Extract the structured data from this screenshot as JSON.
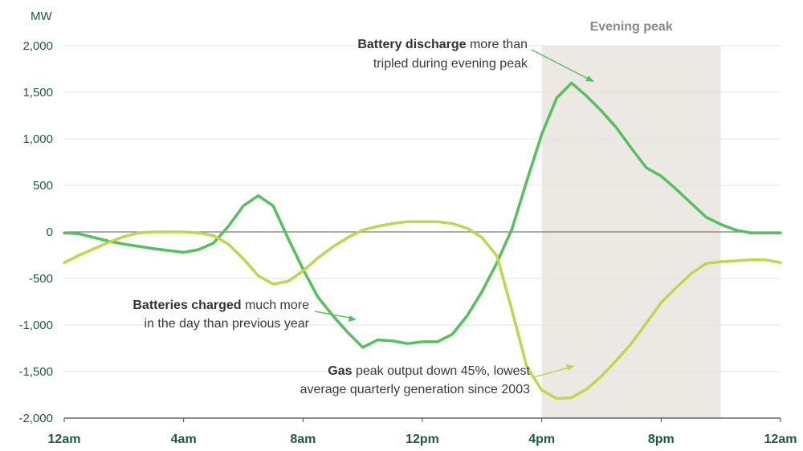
{
  "chart_data": {
    "type": "line",
    "ylabel": "MW",
    "ylim": [
      -2000,
      2000
    ],
    "yticks": [
      2000,
      1500,
      1000,
      500,
      0,
      -500,
      -1000,
      -1500,
      -2000
    ],
    "ytick_labels": [
      "2,000",
      "1,500",
      "1,000",
      "500",
      "0",
      "-500",
      "-1,000",
      "-1,500",
      "-2,000"
    ],
    "xlim": [
      0,
      24
    ],
    "xticks": [
      0,
      4,
      8,
      12,
      16,
      20,
      24
    ],
    "xtick_labels": [
      "12am",
      "4am",
      "8am",
      "12pm",
      "4pm",
      "8pm",
      "12am"
    ],
    "grid": "horizontal",
    "shaded_region": {
      "x": [
        16,
        22
      ],
      "label": "Evening peak",
      "color": "#ece9e4"
    },
    "series": [
      {
        "key": "battery",
        "color": "#55c15c",
        "x": [
          0,
          0.5,
          1,
          1.5,
          2,
          3,
          4,
          4.5,
          5,
          5.5,
          6,
          6.5,
          7,
          7.5,
          8,
          8.5,
          9,
          9.5,
          10,
          10.5,
          11,
          11.5,
          12,
          12.5,
          13,
          13.5,
          14,
          14.5,
          15,
          15.5,
          16,
          16.5,
          17,
          17.5,
          18,
          18.5,
          19,
          19.5,
          20,
          20.5,
          21,
          21.5,
          22,
          22.5,
          23,
          23.5,
          24
        ],
        "values": [
          -10,
          -20,
          -60,
          -100,
          -130,
          -180,
          -220,
          -190,
          -120,
          60,
          280,
          390,
          280,
          -70,
          -400,
          -700,
          -900,
          -1080,
          -1240,
          -1160,
          -1170,
          -1200,
          -1180,
          -1180,
          -1100,
          -900,
          -640,
          -330,
          30,
          550,
          1050,
          1440,
          1600,
          1460,
          1300,
          1120,
          900,
          690,
          600,
          460,
          310,
          160,
          80,
          20,
          -10,
          -10,
          -10
        ]
      },
      {
        "key": "gas",
        "color": "#bcd94e",
        "x": [
          0,
          0.5,
          1,
          1.5,
          2,
          2.5,
          3,
          3.5,
          4,
          4.5,
          5,
          5.5,
          6,
          6.5,
          7,
          7.5,
          8,
          8.5,
          9,
          9.5,
          10,
          10.5,
          11,
          11.5,
          12,
          12.5,
          13,
          13.5,
          14,
          14.5,
          15,
          15.5,
          16,
          16.5,
          17,
          17.5,
          18,
          18.5,
          19,
          19.5,
          20,
          20.5,
          21,
          21.5,
          22,
          22.5,
          23,
          23.5,
          24
        ],
        "values": [
          -330,
          -250,
          -180,
          -110,
          -50,
          -10,
          0,
          0,
          0,
          -10,
          -40,
          -130,
          -290,
          -470,
          -560,
          -530,
          -420,
          -280,
          -160,
          -60,
          20,
          60,
          90,
          110,
          110,
          110,
          90,
          40,
          -60,
          -260,
          -840,
          -1450,
          -1700,
          -1790,
          -1780,
          -1690,
          -1550,
          -1380,
          -1200,
          -980,
          -760,
          -600,
          -450,
          -340,
          -320,
          -310,
          -300,
          -300,
          -330
        ]
      }
    ],
    "annotations": [
      {
        "bold": "Battery discharge",
        "rest": " more than",
        "line2": "tripled during evening peak"
      },
      {
        "bold": "Batteries charged",
        "rest": " much more",
        "line2": "in the day than previous year"
      },
      {
        "bold": "Gas",
        "rest": " peak output down 45%, lowest",
        "line2": "average quarterly generation since 2003"
      }
    ]
  }
}
